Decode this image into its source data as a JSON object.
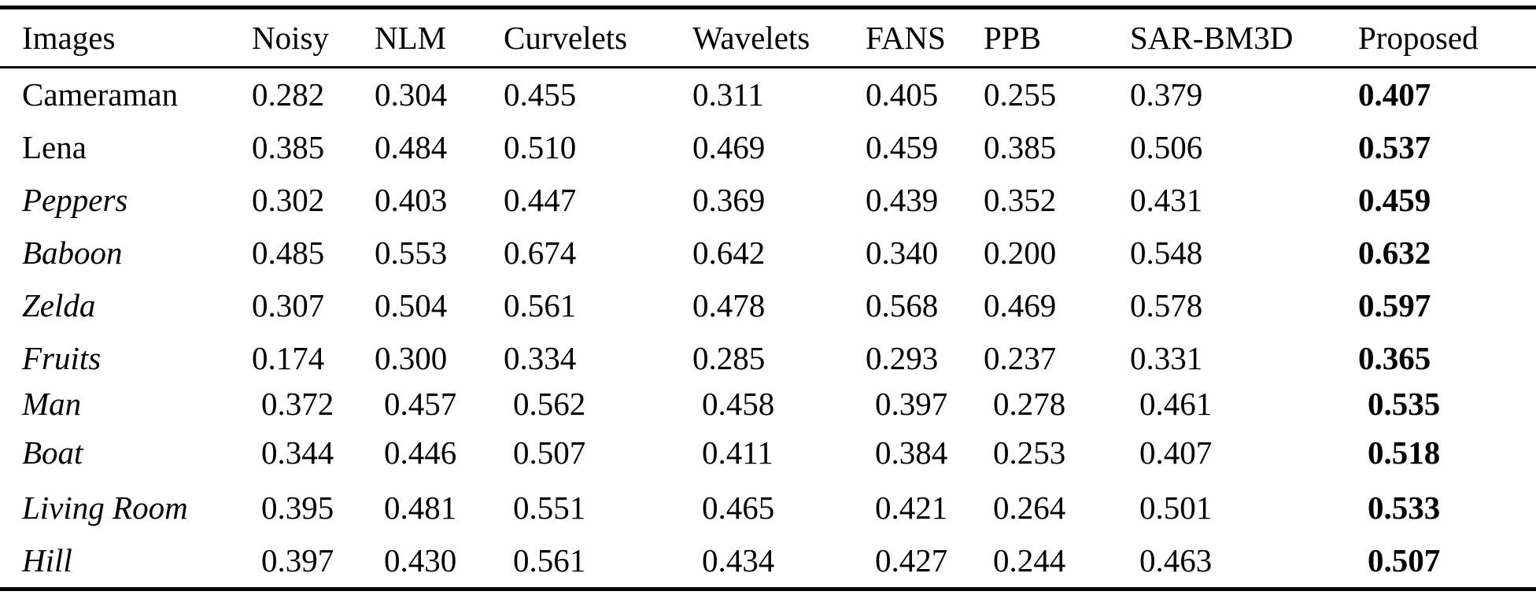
{
  "page": {
    "background_color": "#ffffff",
    "text_color": "#000000"
  },
  "table": {
    "columns": [
      "Images",
      "Noisy",
      "NLM",
      "Curvelets",
      "Wavelets",
      "FANS",
      "PPB",
      "SAR-BM3D",
      "Proposed"
    ],
    "proposed_column_bold": true,
    "rows": [
      {
        "name": "Cameraman",
        "italic": false,
        "values": [
          "0.282",
          "0.304",
          "0.455",
          "0.311",
          "0.405",
          "0.255",
          "0.379"
        ],
        "proposed": "0.407"
      },
      {
        "name": "Lena",
        "italic": false,
        "values": [
          "0.385",
          "0.484",
          "0.510",
          "0.469",
          "0.459",
          "0.385",
          "0.506"
        ],
        "proposed": "0.537"
      },
      {
        "name": "Peppers",
        "italic": true,
        "values": [
          "0.302",
          "0.403",
          "0.447",
          "0.369",
          "0.439",
          "0.352",
          "0.431"
        ],
        "proposed": "0.459"
      },
      {
        "name": "Baboon",
        "italic": true,
        "values": [
          "0.485",
          "0.553",
          "0.674",
          "0.642",
          "0.340",
          "0.200",
          "0.548"
        ],
        "proposed": "0.632"
      },
      {
        "name": "Zelda",
        "italic": true,
        "values": [
          "0.307",
          "0.504",
          "0.561",
          "0.478",
          "0.568",
          "0.469",
          "0.578"
        ],
        "proposed": "0.597"
      },
      {
        "name": "Fruits",
        "italic": true,
        "values": [
          "0.174",
          "0.300",
          "0.334",
          "0.285",
          "0.293",
          "0.237",
          "0.331"
        ],
        "proposed": "0.365"
      },
      {
        "name": "Man",
        "italic": true,
        "values": [
          "0.372",
          "0.457",
          "0.562",
          "0.458",
          "0.397",
          "0.278",
          "0.461"
        ],
        "proposed": "0.535"
      },
      {
        "name": "Boat",
        "italic": true,
        "values": [
          "0.344",
          "0.446",
          "0.507",
          "0.411",
          "0.384",
          "0.253",
          "0.407"
        ],
        "proposed": "0.518"
      },
      {
        "name": "Living Room",
        "italic": true,
        "values": [
          "0.395",
          "0.481",
          "0.551",
          "0.465",
          "0.421",
          "0.264",
          "0.501"
        ],
        "proposed": "0.533"
      },
      {
        "name": "Hill",
        "italic": true,
        "values": [
          "0.397",
          "0.430",
          "0.561",
          "0.434",
          "0.427",
          "0.244",
          "0.463"
        ],
        "proposed": "0.507"
      }
    ]
  }
}
